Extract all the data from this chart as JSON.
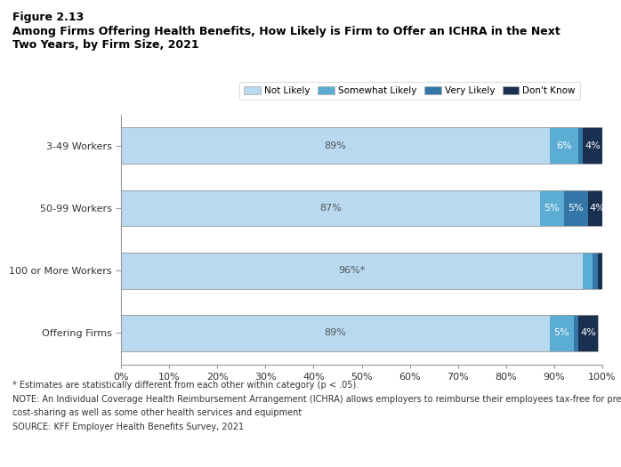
{
  "title_line1": "Figure 2.13",
  "title_line2": "Among Firms Offering Health Benefits, How Likely is Firm to Offer an ICHRA in the Next\nTwo Years, by Firm Size, 2021",
  "categories": [
    "3-49 Workers",
    "50-99 Workers",
    "100 or More Workers",
    "Offering Firms"
  ],
  "not_likely": [
    89,
    87,
    96,
    89
  ],
  "somewhat_likely": [
    6,
    5,
    2,
    5
  ],
  "very_likely": [
    1,
    5,
    1,
    1
  ],
  "dont_know": [
    4,
    4,
    1,
    4
  ],
  "labels_not_likely": [
    "89%",
    "87%",
    "96%*",
    "89%"
  ],
  "labels_somewhat_likely": [
    "6%",
    "5%",
    "",
    "5%"
  ],
  "labels_very_likely": [
    "",
    "5%",
    "",
    ""
  ],
  "labels_dont_know": [
    "4%",
    "4%",
    "",
    "4%"
  ],
  "color_not_likely": "#b8d9f0",
  "color_somewhat_likely": "#5badd4",
  "color_very_likely": "#3476a8",
  "color_dont_know": "#1a3050",
  "legend_labels": [
    "Not Likely",
    "Somewhat Likely",
    "Very Likely",
    "Don't Know"
  ],
  "xlim": [
    0,
    100
  ],
  "xticks": [
    0,
    10,
    20,
    30,
    40,
    50,
    60,
    70,
    80,
    90,
    100
  ],
  "xtick_labels": [
    "0%",
    "10%",
    "20%",
    "30%",
    "40%",
    "50%",
    "60%",
    "70%",
    "80%",
    "90%",
    "100%"
  ],
  "footnote1": "* Estimates are statistically different from each other within category (p < .05).",
  "footnote2": "NOTE: An Individual Coverage Health Reimbursement Arrangement (ICHRA) allows employers to reimburse their employees tax-free for premiums,",
  "footnote3": "cost-sharing as well as some other health services and equipment",
  "footnote4": "SOURCE: KFF Employer Health Benefits Survey, 2021",
  "background_color": "#ffffff"
}
